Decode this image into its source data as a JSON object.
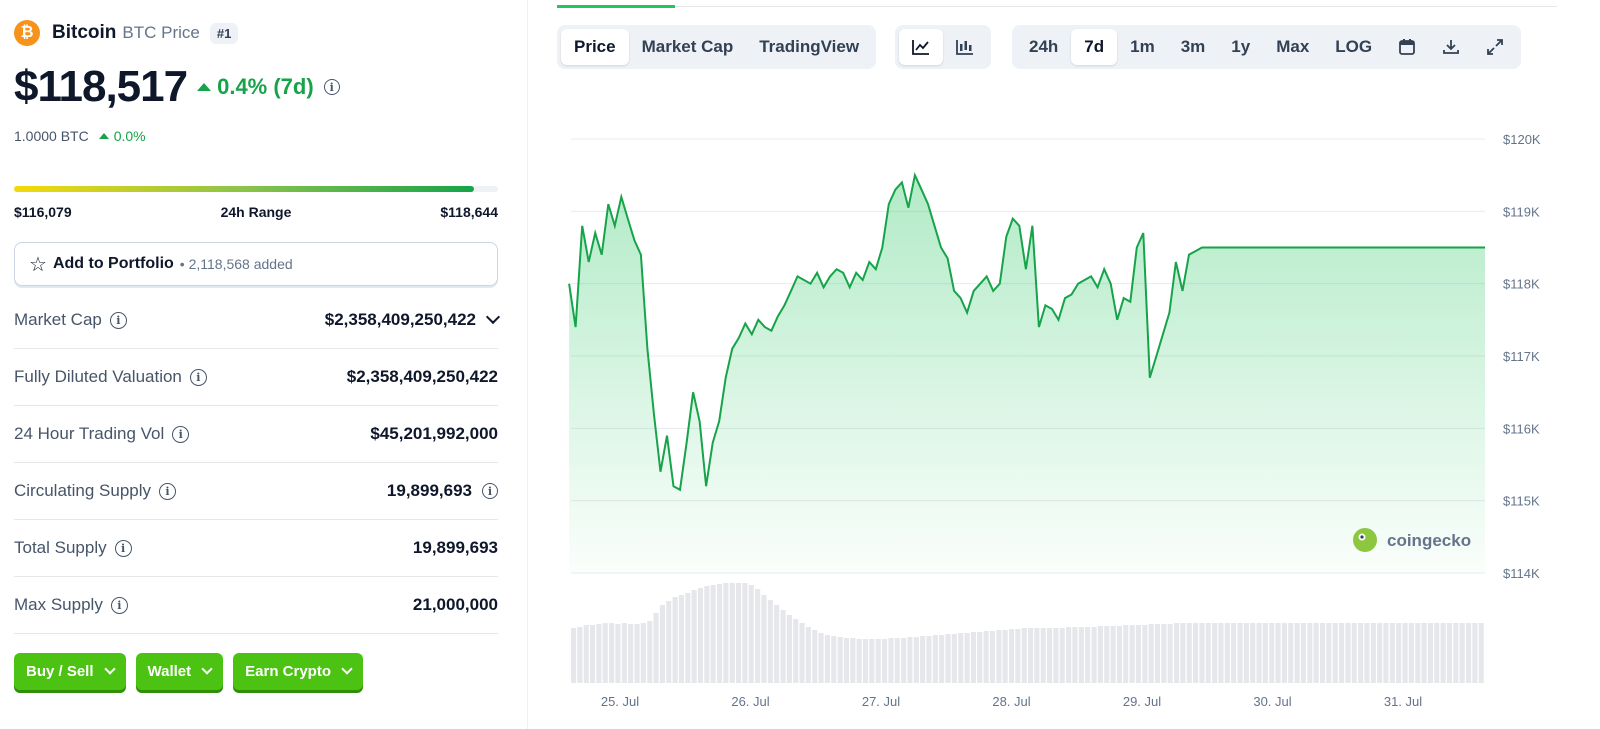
{
  "coin": {
    "icon": "bitcoin-icon",
    "icon_glyph": "₿",
    "name": "Bitcoin",
    "sub": "BTC Price",
    "rank": "#1"
  },
  "price": {
    "value": "$118,517",
    "change": "0.4% (7d)",
    "btc_value": "1.0000 BTC",
    "btc_change": "0.0%"
  },
  "range": {
    "low": "$116,079",
    "label": "24h Range",
    "high": "$118,644",
    "fill_fraction": 0.95
  },
  "portfolio": {
    "label": "Add to Portfolio",
    "count": "• 2,118,568 added"
  },
  "stats": [
    {
      "label": "Market Cap",
      "value": "$2,358,409,250,422",
      "info": true,
      "dropdown": true
    },
    {
      "label": "Fully Diluted Valuation",
      "value": "$2,358,409,250,422",
      "info": true
    },
    {
      "label": "24 Hour Trading Vol",
      "value": "$45,201,992,000",
      "info": true
    },
    {
      "label": "Circulating Supply",
      "value": "19,899,693",
      "info": true,
      "value_info": true
    },
    {
      "label": "Total Supply",
      "value": "19,899,693",
      "info": true
    },
    {
      "label": "Max Supply",
      "value": "21,000,000",
      "info": true
    }
  ],
  "actions": {
    "buy_sell": "Buy / Sell",
    "wallet": "Wallet",
    "earn": "Earn Crypto"
  },
  "toolbar": {
    "views": [
      "Price",
      "Market Cap",
      "TradingView"
    ],
    "active_view": "Price",
    "chart_types": [
      "line-chart-icon",
      "candlestick-icon"
    ],
    "ranges": [
      "24h",
      "7d",
      "1m",
      "3m",
      "1y",
      "Max",
      "LOG"
    ],
    "active_range": "7d",
    "tools": [
      "calendar-icon",
      "download-icon",
      "fullscreen-icon"
    ]
  },
  "watermark": "coingecko",
  "colors": {
    "up": "#16a34a",
    "line": "#16a34a",
    "area": "#22c55e",
    "brand": "#4cc313",
    "bitcoin": "#f7931a"
  },
  "chart_data": {
    "type": "area",
    "x_ticks": [
      "25. Jul",
      "26. Jul",
      "27. Jul",
      "28. Jul",
      "29. Jul",
      "30. Jul",
      "31. Jul"
    ],
    "y_ticks": [
      "$114K",
      "$115K",
      "$116K",
      "$117K",
      "$118K",
      "$119K",
      "$120K"
    ],
    "ylim": [
      114000,
      120000
    ],
    "grid": true,
    "x_days": [
      0.0,
      0.05,
      0.1,
      0.15,
      0.2,
      0.25,
      0.3,
      0.35,
      0.4,
      0.45,
      0.5,
      0.55,
      0.6,
      0.65,
      0.7,
      0.75,
      0.8,
      0.85,
      0.9,
      0.95,
      1.0,
      1.05,
      1.1,
      1.15,
      1.2,
      1.25,
      1.3,
      1.35,
      1.4,
      1.45,
      1.5,
      1.55,
      1.6,
      1.65,
      1.7,
      1.75,
      1.8,
      1.85,
      1.9,
      1.95,
      2.0,
      2.05,
      2.1,
      2.15,
      2.2,
      2.25,
      2.3,
      2.35,
      2.4,
      2.45,
      2.5,
      2.55,
      2.6,
      2.65,
      2.7,
      2.75,
      2.8,
      2.85,
      2.9,
      2.95,
      3.0,
      3.05,
      3.1,
      3.15,
      3.2,
      3.25,
      3.3,
      3.35,
      3.4,
      3.45,
      3.5,
      3.55,
      3.6,
      3.65,
      3.7,
      3.75,
      3.8,
      3.85,
      3.9,
      3.95,
      4.0,
      4.05,
      4.1,
      4.15,
      4.2,
      4.25,
      4.3,
      4.35,
      4.4,
      4.45,
      4.5,
      4.55,
      4.6,
      4.65,
      4.7,
      4.75,
      4.8,
      4.85,
      4.9,
      4.95,
      5.0,
      5.05,
      5.1,
      5.15,
      5.2,
      5.25,
      5.3,
      5.35,
      5.4,
      5.45,
      5.5,
      5.55,
      5.6,
      5.65,
      5.7,
      5.75,
      5.8,
      5.85,
      5.9,
      5.95,
      6.0,
      6.05,
      6.1,
      6.15,
      6.2,
      6.25,
      6.3,
      6.35,
      6.4,
      6.45,
      6.5,
      6.55,
      6.6,
      6.65,
      6.7,
      6.75,
      6.8,
      6.85,
      6.9,
      6.95,
      7.0,
      7.05
    ],
    "prices": [
      118000,
      117400,
      118800,
      118300,
      118700,
      118400,
      119100,
      118800,
      119200,
      118900,
      118600,
      118400,
      117100,
      116200,
      115400,
      115900,
      115200,
      115150,
      115800,
      116500,
      116100,
      115200,
      115800,
      116100,
      116700,
      117100,
      117250,
      117450,
      117300,
      117500,
      117400,
      117350,
      117550,
      117700,
      117900,
      118100,
      118050,
      118000,
      118150,
      117950,
      118100,
      118200,
      118150,
      117950,
      118150,
      118050,
      118300,
      118200,
      118500,
      119100,
      119300,
      119400,
      119050,
      119500,
      119300,
      119100,
      118800,
      118500,
      118350,
      117900,
      117800,
      117600,
      117900,
      118000,
      118100,
      117900,
      118000,
      118650,
      118900,
      118800,
      118200,
      118800,
      117400,
      117700,
      117650,
      117500,
      117800,
      117850,
      118000,
      118050,
      118100,
      117950,
      118200,
      118000,
      117500,
      117800,
      117750,
      118500,
      118700,
      116700,
      117000,
      117300,
      117600,
      118300,
      117900,
      118400,
      118450,
      118500,
      118500,
      118500,
      118500,
      118500,
      118500,
      118500,
      118500,
      118500,
      118500,
      118500,
      118500,
      118500,
      118500,
      118500,
      118500,
      118500,
      118500,
      118500,
      118500,
      118500,
      118500,
      118500,
      118500,
      118500,
      118500,
      118500,
      118500,
      118500,
      118500,
      118500,
      118500,
      118500,
      118500,
      118500,
      118500,
      118500,
      118500,
      118500,
      118500,
      118500,
      118500,
      118500,
      118500,
      118500
    ],
    "volume_relative": [
      0.55,
      0.56,
      0.58,
      0.58,
      0.59,
      0.6,
      0.6,
      0.59,
      0.6,
      0.59,
      0.59,
      0.6,
      0.62,
      0.7,
      0.78,
      0.82,
      0.86,
      0.88,
      0.9,
      0.93,
      0.95,
      0.97,
      0.98,
      0.99,
      1.0,
      1.0,
      1.0,
      1.0,
      0.98,
      0.94,
      0.88,
      0.83,
      0.78,
      0.73,
      0.68,
      0.64,
      0.6,
      0.56,
      0.53,
      0.5,
      0.48,
      0.47,
      0.46,
      0.45,
      0.45,
      0.44,
      0.44,
      0.44,
      0.44,
      0.44,
      0.45,
      0.45,
      0.45,
      0.46,
      0.46,
      0.47,
      0.47,
      0.48,
      0.48,
      0.49,
      0.49,
      0.5,
      0.5,
      0.51,
      0.51,
      0.52,
      0.52,
      0.53,
      0.53,
      0.54,
      0.54,
      0.55,
      0.55,
      0.55,
      0.55,
      0.55,
      0.55,
      0.55,
      0.56,
      0.56,
      0.56,
      0.56,
      0.56,
      0.57,
      0.57,
      0.57,
      0.57,
      0.58,
      0.58,
      0.58,
      0.58,
      0.59,
      0.59,
      0.59,
      0.59,
      0.6,
      0.6,
      0.6,
      0.6,
      0.6,
      0.6,
      0.6,
      0.6,
      0.6,
      0.6,
      0.6,
      0.6,
      0.6,
      0.6,
      0.6,
      0.6,
      0.6,
      0.6,
      0.6,
      0.6,
      0.6,
      0.6,
      0.6,
      0.6,
      0.6,
      0.6,
      0.6,
      0.6,
      0.6,
      0.6,
      0.6,
      0.6,
      0.6,
      0.6,
      0.6,
      0.6,
      0.6,
      0.6,
      0.6,
      0.6,
      0.6,
      0.6,
      0.6,
      0.6,
      0.6,
      0.6,
      0.6,
      0.6,
      0.6
    ]
  }
}
